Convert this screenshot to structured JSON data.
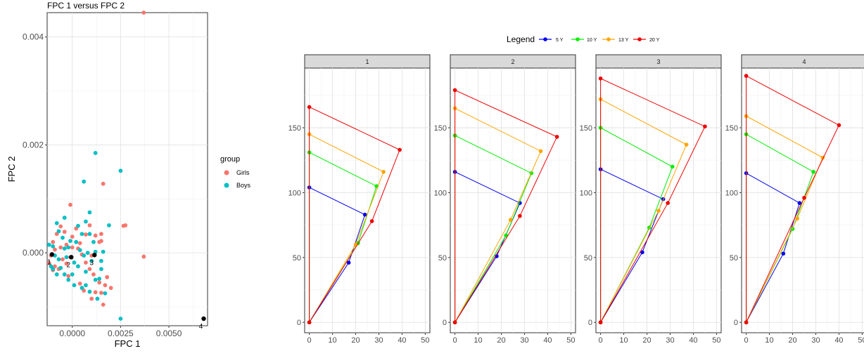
{
  "scatter": {
    "type": "scatter",
    "title": "FPC 1 versus FPC 2",
    "xlabel": "FPC 1",
    "ylabel": "FPC 2",
    "xlim": [
      -0.0013,
      0.007
    ],
    "ylim": [
      -0.00135,
      0.00445
    ],
    "x_ticks": [
      0.0,
      0.0025,
      0.005
    ],
    "x_tick_labels": [
      "0.0000",
      "0.0025",
      "0.0050"
    ],
    "y_ticks": [
      0.0,
      0.002,
      0.004
    ],
    "y_tick_labels": [
      "0.000",
      "0.002",
      "0.004"
    ],
    "grid": true,
    "legend": {
      "title": "group",
      "position": "right"
    },
    "series": [
      {
        "name": "Girls",
        "color": "#F8766D",
        "points": [
          [
            0.0037,
            0.00445
          ],
          [
            0.0016,
            0.00128
          ],
          [
            0.00265,
            0.0005
          ],
          [
            0.00275,
            0.00051
          ],
          [
            0.0037,
            -7e-05
          ],
          [
            -0.0001,
            0.00089
          ],
          [
            0.0015,
            0.00022
          ],
          [
            0.0015,
            0.00035
          ],
          [
            0.0009,
            0.00051
          ],
          [
            0.0007,
            0.00034
          ],
          [
            0.0014,
            0.0002
          ],
          [
            0.0017,
            -0.0006
          ],
          [
            0.002,
            -0.00065
          ],
          [
            0.0015,
            -0.00074
          ],
          [
            0.0012,
            -0.00073
          ],
          [
            0.0016,
            -0.00096
          ],
          [
            0.001,
            -0.00085
          ],
          [
            0.0004,
            -0.00057
          ],
          [
            -0.0002,
            -0.00043
          ],
          [
            -0.0009,
            -0.00025
          ],
          [
            -0.0011,
            -5e-05
          ],
          [
            -0.001,
            0.0002
          ],
          [
            -0.0008,
            0.00035
          ],
          [
            -0.0006,
            0.00049
          ],
          [
            -0.0004,
            0.00039
          ],
          [
            -0.0003,
            0.00015
          ],
          [
            -0.0005,
            -0.00012
          ],
          [
            -0.0007,
            -0.0003
          ],
          [
            -0.0003,
            -0.0002
          ],
          [
            0.0,
            0.0003
          ],
          [
            0.0002,
            0.00045
          ],
          [
            0.0004,
            0.00018
          ],
          [
            0.0005,
            -3e-05
          ],
          [
            0.0007,
            -0.00018
          ],
          [
            0.0009,
            -0.0003
          ],
          [
            0.0003,
            8e-05
          ],
          [
            -0.0001,
            -8e-05
          ],
          [
            0.0,
            0.0001
          ],
          [
            -0.0009,
            6e-05
          ],
          [
            -0.0012,
            -0.00019
          ],
          [
            0.0011,
            -0.0004
          ],
          [
            0.0014,
            -0.00055
          ],
          [
            0.001,
            -5e-05
          ],
          [
            0.0012,
            0.00032
          ],
          [
            -0.0006,
            0.0001
          ],
          [
            0.0006,
            -0.0007
          ],
          [
            0.0018,
            -0.00045
          ],
          [
            -0.001,
            -0.00032
          ]
        ]
      },
      {
        "name": "Boys",
        "color": "#00BFC4",
        "points": [
          [
            0.0012,
            0.00185
          ],
          [
            0.0025,
            0.00152
          ],
          [
            0.0006,
            0.00132
          ],
          [
            0.0019,
            0.00051
          ],
          [
            0.0025,
            -0.00122
          ],
          [
            0.0009,
            0.00075
          ],
          [
            0.0007,
            0.00058
          ],
          [
            -0.0004,
            0.00065
          ],
          [
            -0.0008,
            0.00055
          ],
          [
            -0.001,
            0.00012
          ],
          [
            -0.0011,
            -0.00025
          ],
          [
            -0.001,
            -0.0003
          ],
          [
            -0.0006,
            -0.00028
          ],
          [
            -0.0004,
            -0.0004
          ],
          [
            -0.0002,
            -0.0005
          ],
          [
            0.0001,
            -0.0006
          ],
          [
            0.0005,
            -0.00065
          ],
          [
            0.0007,
            -0.0006
          ],
          [
            0.0012,
            -0.0005
          ],
          [
            0.0014,
            -0.00048
          ],
          [
            0.0013,
            -0.00085
          ],
          [
            0.0017,
            -0.00075
          ],
          [
            0.0009,
            -0.00072
          ],
          [
            0.0,
            -0.0004
          ],
          [
            -0.0002,
            0.0001
          ],
          [
            -0.0001,
            0.00022
          ],
          [
            0.0002,
            0.0002
          ],
          [
            0.0004,
            5e-05
          ],
          [
            0.0006,
            -5e-05
          ],
          [
            0.0008,
            0.0
          ],
          [
            0.001,
            -0.00015
          ],
          [
            0.0012,
            2e-05
          ],
          [
            0.0015,
            -0.00015
          ],
          [
            0.0015,
            -0.0003
          ],
          [
            -0.0007,
            0.0004
          ],
          [
            -0.0005,
            0.00028
          ],
          [
            -0.0003,
            -8e-05
          ],
          [
            -0.0007,
            -0.00012
          ],
          [
            -0.0009,
            -5e-05
          ],
          [
            0.0003,
            -0.00025
          ],
          [
            0.0005,
            0.00035
          ],
          [
            0.0009,
            0.00035
          ],
          [
            0.0011,
            0.0002
          ],
          [
            0.0016,
            2e-05
          ],
          [
            -0.0004,
            8e-05
          ],
          [
            0.0001,
            -0.00018
          ],
          [
            0.0007,
            -0.00035
          ],
          [
            -0.0012,
            0.00015
          ],
          [
            -0.0008,
            -0.0004
          ],
          [
            0.0003,
            0.0005
          ]
        ]
      }
    ],
    "labeled_points": [
      {
        "label": "1",
        "x": -0.00105,
        "y": -3e-05
      },
      {
        "label": "2",
        "x": -5e-05,
        "y": -8e-05
      },
      {
        "label": "3",
        "x": 0.00115,
        "y": -4e-05
      },
      {
        "label": "4",
        "x": 0.0068,
        "y": -0.00122
      }
    ]
  },
  "chart_data": {
    "type": "line",
    "legend": {
      "title": "Legend",
      "position": "top",
      "entries": [
        {
          "name": "5 Y",
          "color": "#0000EE"
        },
        {
          "name": "10 Y",
          "color": "#00EE00"
        },
        {
          "name": "13 Y",
          "color": "#FFA500"
        },
        {
          "name": "20 Y",
          "color": "#EE0000"
        }
      ]
    },
    "xlim": [
      -2,
      52
    ],
    "ylim": [
      -8,
      196
    ],
    "x_ticks": [
      0,
      10,
      20,
      30,
      40,
      50
    ],
    "x_tick_labels": [
      "0",
      "10",
      "20",
      "30",
      "40",
      "50"
    ],
    "y_ticks": [
      0,
      50,
      100,
      150
    ],
    "y_tick_labels": [
      "0",
      "50",
      "100",
      "150"
    ],
    "grid": true,
    "panels": [
      {
        "label": "1",
        "series": [
          {
            "name": "5 Y",
            "points": [
              [
                0,
                0
              ],
              [
                17,
                46
              ],
              [
                24,
                83
              ],
              [
                0,
                104
              ],
              [
                0,
                0
              ]
            ]
          },
          {
            "name": "10 Y",
            "points": [
              [
                0,
                0
              ],
              [
                21,
                61
              ],
              [
                29,
                105
              ],
              [
                0,
                131
              ],
              [
                0,
                0
              ]
            ]
          },
          {
            "name": "13 Y",
            "points": [
              [
                0,
                0
              ],
              [
                20,
                60
              ],
              [
                32,
                116
              ],
              [
                0,
                145
              ],
              [
                0,
                0
              ]
            ]
          },
          {
            "name": "20 Y",
            "points": [
              [
                0,
                0
              ],
              [
                27,
                78
              ],
              [
                39,
                133
              ],
              [
                0,
                166
              ],
              [
                0,
                0
              ]
            ]
          }
        ]
      },
      {
        "label": "2",
        "series": [
          {
            "name": "5 Y",
            "points": [
              [
                0,
                0
              ],
              [
                18,
                51
              ],
              [
                28,
                92
              ],
              [
                0,
                116
              ],
              [
                0,
                0
              ]
            ]
          },
          {
            "name": "10 Y",
            "points": [
              [
                0,
                0
              ],
              [
                22,
                67
              ],
              [
                33,
                115
              ],
              [
                0,
                144
              ],
              [
                0,
                0
              ]
            ]
          },
          {
            "name": "13 Y",
            "points": [
              [
                0,
                0
              ],
              [
                24,
                79
              ],
              [
                37,
                132
              ],
              [
                0,
                165
              ],
              [
                0,
                0
              ]
            ]
          },
          {
            "name": "20 Y",
            "points": [
              [
                0,
                0
              ],
              [
                28,
                82
              ],
              [
                44,
                143
              ],
              [
                0,
                179
              ],
              [
                0,
                0
              ]
            ]
          }
        ]
      },
      {
        "label": "3",
        "series": [
          {
            "name": "5 Y",
            "points": [
              [
                0,
                0
              ],
              [
                18,
                54
              ],
              [
                27,
                95
              ],
              [
                0,
                118
              ],
              [
                0,
                0
              ]
            ]
          },
          {
            "name": "10 Y",
            "points": [
              [
                0,
                0
              ],
              [
                21,
                73
              ],
              [
                31,
                120
              ],
              [
                0,
                150
              ],
              [
                0,
                0
              ]
            ]
          },
          {
            "name": "13 Y",
            "points": [
              [
                0,
                0
              ],
              [
                25,
                86
              ],
              [
                37,
                137
              ],
              [
                0,
                172
              ],
              [
                0,
                0
              ]
            ]
          },
          {
            "name": "20 Y",
            "points": [
              [
                0,
                0
              ],
              [
                29,
                92
              ],
              [
                45,
                151
              ],
              [
                0,
                188
              ],
              [
                0,
                0
              ]
            ]
          }
        ]
      },
      {
        "label": "4",
        "series": [
          {
            "name": "5 Y",
            "points": [
              [
                0,
                0
              ],
              [
                16,
                53
              ],
              [
                23,
                92
              ],
              [
                0,
                115
              ],
              [
                0,
                0
              ]
            ]
          },
          {
            "name": "10 Y",
            "points": [
              [
                0,
                0
              ],
              [
                20,
                72
              ],
              [
                29,
                116
              ],
              [
                0,
                145
              ],
              [
                0,
                0
              ]
            ]
          },
          {
            "name": "13 Y",
            "points": [
              [
                0,
                0
              ],
              [
                22,
                80
              ],
              [
                33,
                127
              ],
              [
                0,
                159
              ],
              [
                0,
                0
              ]
            ]
          },
          {
            "name": "20 Y",
            "points": [
              [
                0,
                0
              ],
              [
                25,
                96
              ],
              [
                40,
                152
              ],
              [
                0,
                190
              ],
              [
                0,
                0
              ]
            ]
          }
        ]
      }
    ]
  }
}
